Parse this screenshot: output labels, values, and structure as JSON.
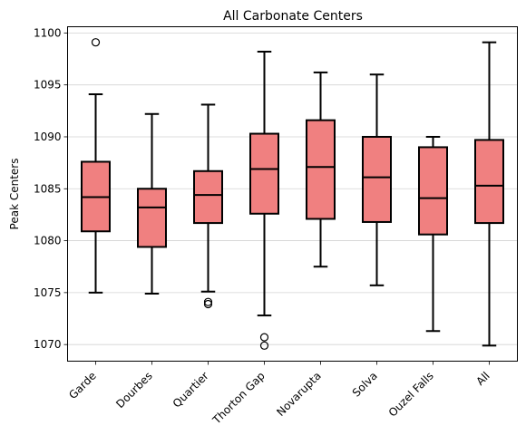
{
  "chart_data": {
    "type": "boxplot",
    "title": "All Carbonate Centers",
    "xlabel": "",
    "ylabel": "Peak Centers",
    "ylim": [
      1068.4,
      1100.6
    ],
    "yticks": [
      1070,
      1075,
      1080,
      1085,
      1090,
      1095,
      1100
    ],
    "grid": "horizontal",
    "box_color": "#f08080",
    "categories": [
      "Garde",
      "Dourbes",
      "Quartier",
      "Thorton Gap",
      "Novarupta",
      "Solva",
      "Ouzel Falls",
      "All"
    ],
    "boxes": [
      {
        "whisker_low": 1075.0,
        "q1": 1080.9,
        "median": 1084.2,
        "q3": 1087.6,
        "whisker_high": 1094.1,
        "outliers": [
          1099.1
        ]
      },
      {
        "whisker_low": 1074.9,
        "q1": 1079.4,
        "median": 1083.2,
        "q3": 1085.0,
        "whisker_high": 1092.2,
        "outliers": []
      },
      {
        "whisker_low": 1075.1,
        "q1": 1081.7,
        "median": 1084.4,
        "q3": 1086.7,
        "whisker_high": 1093.1,
        "outliers": [
          1074.1,
          1073.9
        ]
      },
      {
        "whisker_low": 1072.8,
        "q1": 1082.6,
        "median": 1086.9,
        "q3": 1090.3,
        "whisker_high": 1098.2,
        "outliers": [
          1070.7,
          1069.9
        ]
      },
      {
        "whisker_low": 1077.5,
        "q1": 1082.1,
        "median": 1087.1,
        "q3": 1091.6,
        "whisker_high": 1096.2,
        "outliers": []
      },
      {
        "whisker_low": 1075.7,
        "q1": 1081.8,
        "median": 1086.1,
        "q3": 1090.0,
        "whisker_high": 1096.0,
        "outliers": []
      },
      {
        "whisker_low": 1071.3,
        "q1": 1080.6,
        "median": 1084.1,
        "q3": 1089.0,
        "whisker_high": 1090.0,
        "outliers": []
      },
      {
        "whisker_low": 1069.9,
        "q1": 1081.7,
        "median": 1085.3,
        "q3": 1089.7,
        "whisker_high": 1099.1,
        "outliers": []
      }
    ]
  }
}
